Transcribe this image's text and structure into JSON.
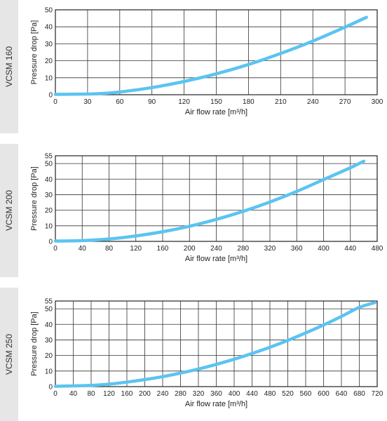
{
  "charts": [
    {
      "model": "VCSM 160"
    },
    {
      "model": "VCSM 200"
    },
    {
      "model": "VCSM 250"
    }
  ],
  "chart_data": [
    {
      "type": "line",
      "xlabel": "Air flow rate [m³/h]",
      "ylabel": "Pressure drop [Pa]",
      "xlim": [
        0,
        300
      ],
      "ylim": [
        0,
        50
      ],
      "xticks": [
        0,
        30,
        60,
        90,
        120,
        150,
        180,
        210,
        240,
        270,
        300
      ],
      "yticks": [
        0,
        10,
        20,
        30,
        40,
        50
      ],
      "line_color": "#5bc4f1",
      "grid": true,
      "series": [
        {
          "x": [
            0,
            30,
            45,
            60,
            90,
            120,
            150,
            180,
            210,
            240,
            270,
            290
          ],
          "y": [
            0.2,
            0.4,
            0.8,
            1.6,
            4.2,
            7.8,
            12.3,
            17.8,
            24.3,
            31.6,
            39.8,
            45.6
          ]
        }
      ]
    },
    {
      "type": "line",
      "xlabel": "Air flow rate [m³/h]",
      "ylabel": "Pressure drop [Pa]",
      "xlim": [
        0,
        480
      ],
      "ylim": [
        0,
        55
      ],
      "xticks": [
        0,
        40,
        80,
        120,
        160,
        200,
        240,
        280,
        320,
        360,
        400,
        440,
        480
      ],
      "yticks": [
        0,
        10,
        20,
        30,
        40,
        50,
        55
      ],
      "line_color": "#5bc4f1",
      "grid": true,
      "series": [
        {
          "x": [
            0,
            40,
            80,
            120,
            160,
            200,
            240,
            280,
            320,
            360,
            400,
            440,
            460
          ],
          "y": [
            0.2,
            0.5,
            1.5,
            3.5,
            6.2,
            9.7,
            14.1,
            19.3,
            25.3,
            32.1,
            39.7,
            47.3,
            51.5
          ]
        }
      ]
    },
    {
      "type": "line",
      "xlabel": "Air flow rate [m³/h]",
      "ylabel": "Pressure drop [Pa]",
      "xlim": [
        0,
        720
      ],
      "ylim": [
        0,
        55
      ],
      "xticks": [
        0,
        40,
        80,
        120,
        160,
        200,
        240,
        280,
        320,
        360,
        400,
        440,
        480,
        520,
        560,
        600,
        640,
        680,
        720
      ],
      "yticks": [
        0,
        10,
        20,
        30,
        40,
        50,
        55
      ],
      "line_color": "#5bc4f1",
      "grid": true,
      "series": [
        {
          "x": [
            0,
            80,
            120,
            160,
            200,
            240,
            280,
            320,
            360,
            400,
            440,
            480,
            520,
            560,
            600,
            640,
            680,
            715
          ],
          "y": [
            0.2,
            0.8,
            1.6,
            2.9,
            4.5,
            6.4,
            8.7,
            11.3,
            14.3,
            17.6,
            21.3,
            25.3,
            29.7,
            34.5,
            39.6,
            45.1,
            50.9,
            54.0
          ]
        }
      ]
    }
  ]
}
